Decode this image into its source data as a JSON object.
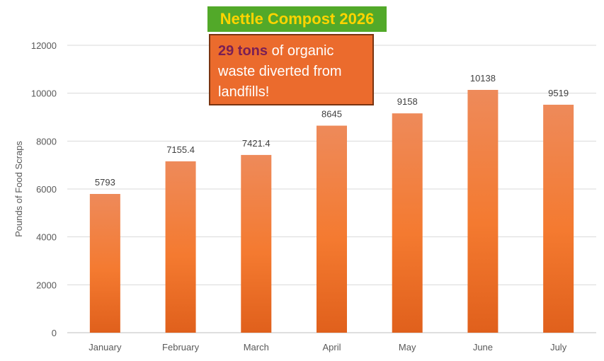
{
  "chart_data": {
    "type": "bar",
    "title": "Nettle Compost 2026",
    "xlabel": "",
    "ylabel": "Pounds of Food Scraps",
    "ylim": [
      0,
      12000
    ],
    "yticks": [
      "0",
      "2000",
      "4000",
      "6000",
      "8000",
      "10000",
      "12000"
    ],
    "grid": true,
    "legend": "none",
    "categories": [
      "January",
      "February",
      "March",
      "April",
      "May",
      "June",
      "July"
    ],
    "values": [
      5793,
      7155.4,
      7421.4,
      8645,
      9158,
      10138,
      9519
    ],
    "value_labels": [
      "5793",
      "7155.4",
      "7421.4",
      "8645",
      "9158",
      "10138",
      "9519"
    ],
    "annotation": {
      "highlight": "29 tons",
      "text": " of organic waste diverted from landfills!"
    },
    "colors": {
      "bar_top": "#ee8a5a",
      "bar_mid": "#f47a30",
      "bar_bottom": "#e0601c",
      "title_bg": "#52a929",
      "title_text": "#ffd400",
      "callout_bg": "#eb6b2d",
      "callout_border": "#7a3410",
      "highlight": "#7a1f55"
    }
  }
}
